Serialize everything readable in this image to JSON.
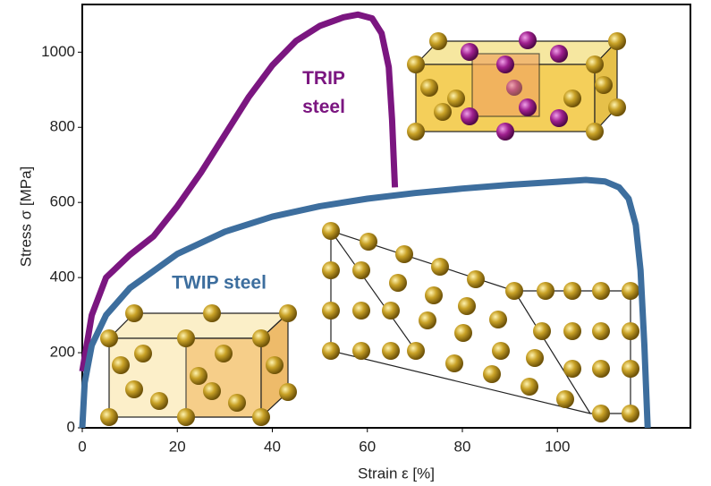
{
  "chart_data": {
    "type": "line",
    "x_label": "Strain ε [%]",
    "y_label": "Stress σ [MPa]",
    "xlim": [
      0,
      128
    ],
    "ylim": [
      0,
      1127
    ],
    "xticks": [
      0,
      20,
      40,
      60,
      80,
      100
    ],
    "yticks": [
      0,
      200,
      400,
      600,
      800,
      1000
    ],
    "series": [
      {
        "name": "TRIP steel",
        "color": "#7b1680",
        "x": [
          0,
          2,
          5,
          10,
          15,
          20,
          25,
          30,
          35,
          40,
          45,
          50,
          55,
          58,
          61,
          63,
          64.5,
          65.2,
          65.6,
          65.8
        ],
        "values": [
          150,
          300,
          400,
          460,
          510,
          590,
          680,
          780,
          880,
          965,
          1030,
          1070,
          1093,
          1100,
          1090,
          1050,
          960,
          820,
          700,
          640
        ]
      },
      {
        "name": "TWIP steel",
        "color": "#3d6e9e",
        "x": [
          0,
          0.5,
          2,
          5,
          10,
          20,
          30,
          40,
          50,
          60,
          70,
          80,
          90,
          100,
          106,
          110,
          113,
          115,
          116.5,
          117.5,
          118.3,
          119
        ],
        "values": [
          0,
          120,
          220,
          300,
          372,
          463,
          522,
          562,
          590,
          610,
          625,
          637,
          647,
          655,
          660,
          656,
          640,
          610,
          540,
          420,
          220,
          0
        ]
      }
    ]
  }
}
